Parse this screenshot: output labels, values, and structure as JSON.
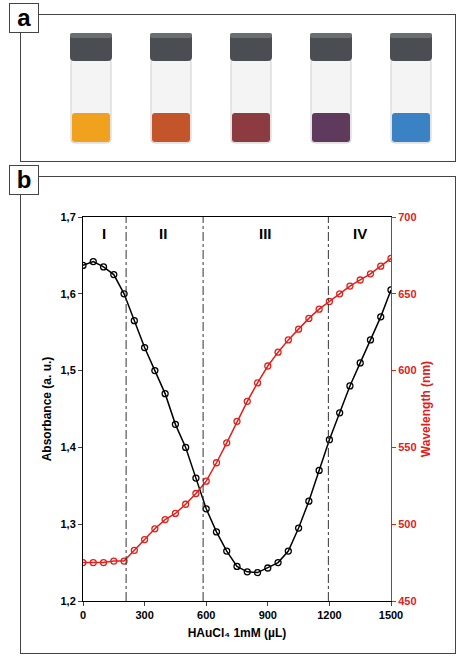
{
  "chart_data": {
    "type": "line",
    "panel_label": "b",
    "x_label": "HAuCl₄ 1mM (µL)",
    "y_label": "Absorbance (a. u.)",
    "y2_label": "Wavelength (nm)",
    "x": [
      0,
      50,
      100,
      150,
      200,
      250,
      300,
      350,
      400,
      450,
      500,
      550,
      600,
      650,
      700,
      750,
      800,
      850,
      900,
      950,
      1000,
      1050,
      1100,
      1150,
      1200,
      1250,
      1300,
      1350,
      1400,
      1450,
      1500
    ],
    "series": [
      {
        "name": "Absorbance",
        "color": "#000000",
        "marker": "circle-open",
        "axis": "y",
        "values": [
          1.637,
          1.642,
          1.635,
          1.625,
          1.6,
          1.565,
          1.53,
          1.5,
          1.47,
          1.43,
          1.4,
          1.36,
          1.32,
          1.29,
          1.265,
          1.245,
          1.238,
          1.237,
          1.243,
          1.25,
          1.265,
          1.295,
          1.33,
          1.37,
          1.41,
          1.445,
          1.48,
          1.51,
          1.54,
          1.57,
          1.605
        ]
      },
      {
        "name": "Wavelength",
        "color": "#e0201b",
        "marker": "circle-open",
        "axis": "y2",
        "values": [
          475,
          475,
          475,
          476,
          476,
          483,
          490,
          497,
          503,
          507,
          513,
          520,
          528,
          540,
          553,
          567,
          580,
          592,
          603,
          612,
          620,
          627,
          634,
          640,
          645,
          650,
          655,
          659,
          663,
          668,
          673
        ]
      }
    ],
    "xlim": [
      0,
      1500
    ],
    "xticks": [
      0,
      300,
      600,
      900,
      1200,
      1500
    ],
    "ylim": [
      1.2,
      1.7
    ],
    "yticks": [
      {
        "value": 1.2,
        "label": "1,2"
      },
      {
        "value": 1.3,
        "label": "1,3"
      },
      {
        "value": 1.4,
        "label": "1,4"
      },
      {
        "value": 1.5,
        "label": "1,5"
      },
      {
        "value": 1.6,
        "label": "1,6"
      },
      {
        "value": 1.7,
        "label": "1,7"
      }
    ],
    "y2lim": [
      450,
      700
    ],
    "y2ticks": [
      450,
      500,
      550,
      600,
      650,
      700
    ],
    "grid": false,
    "region_boundaries": [
      210,
      585,
      1195
    ],
    "boundary_line_style": "dashdot",
    "regions": [
      {
        "label": "I",
        "x": 100
      },
      {
        "label": "II",
        "x": 390
      },
      {
        "label": "III",
        "x": 890
      },
      {
        "label": "IV",
        "x": 1350
      }
    ]
  },
  "photo_panel": {
    "panel_label": "a",
    "vial_colors": [
      "#f0a11e",
      "#c4552b",
      "#8c3b40",
      "#5e3a5c",
      "#3b82c4"
    ]
  }
}
